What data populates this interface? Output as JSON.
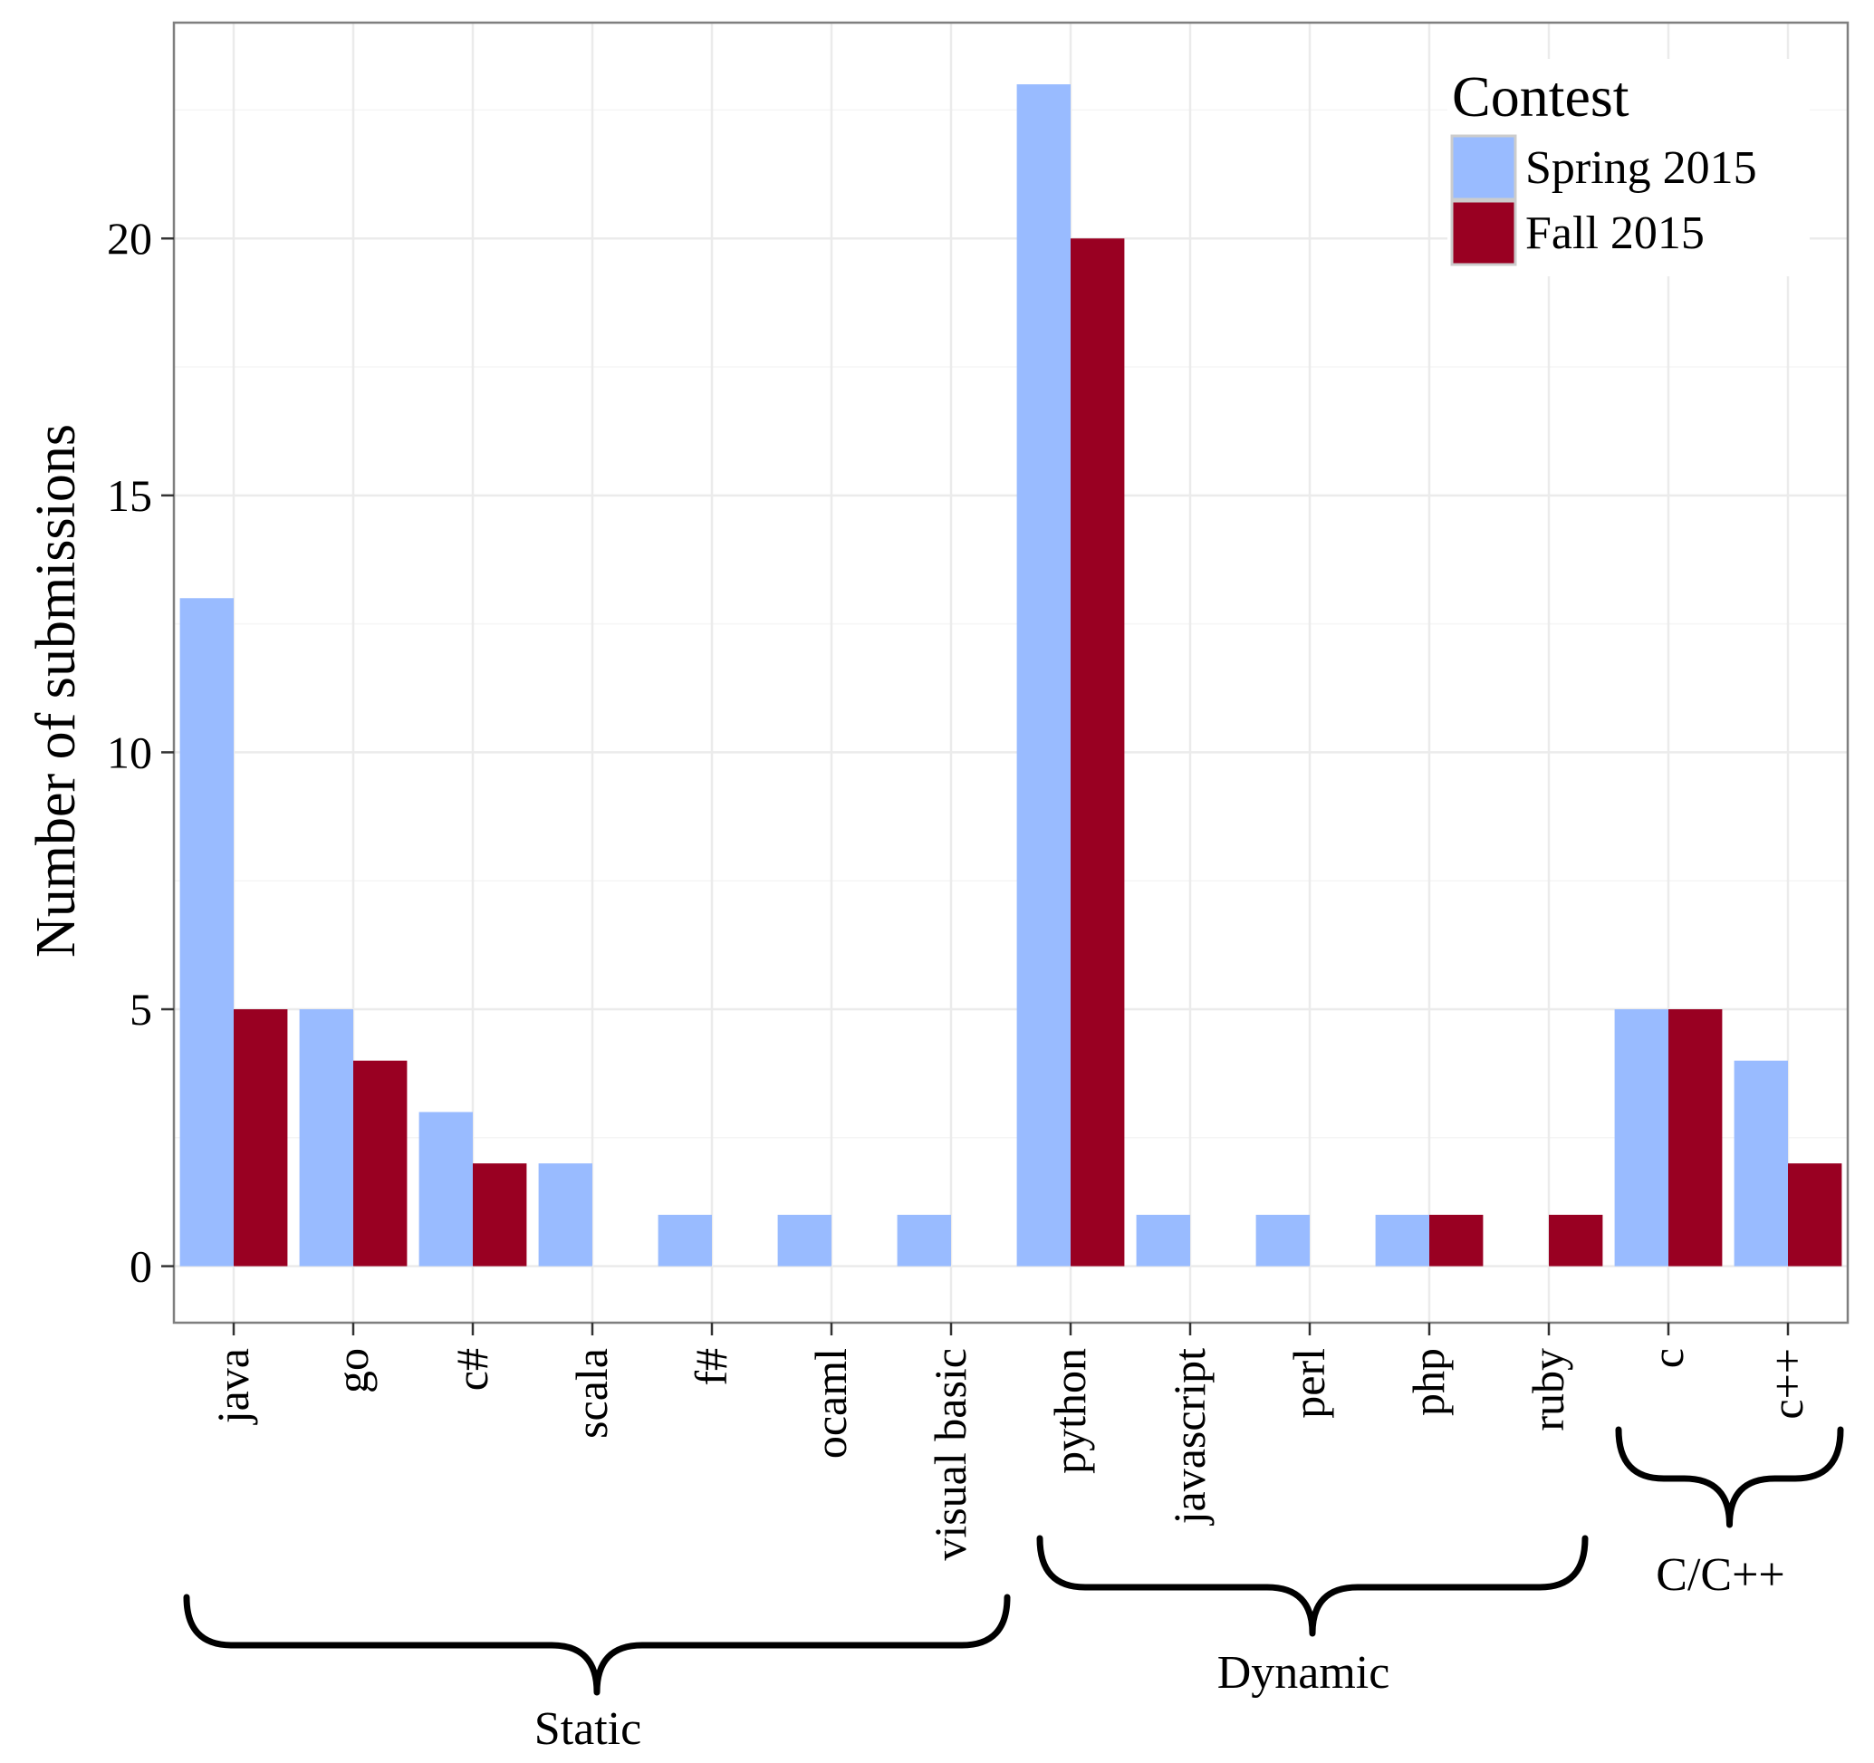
{
  "chart_data": {
    "type": "bar",
    "title": "",
    "xlabel": "",
    "ylabel": "Number of submissions",
    "ylim": [
      -1.1,
      24.2
    ],
    "yticks": [
      0,
      5,
      10,
      15,
      20
    ],
    "grid": true,
    "categories": [
      "java",
      "go",
      "c#",
      "scala",
      "f#",
      "ocaml",
      "visual basic",
      "python",
      "javascript",
      "perl",
      "php",
      "ruby",
      "c",
      "c++"
    ],
    "legend": {
      "title": "Contest",
      "placement": "top-right"
    },
    "series": [
      {
        "name": "Spring 2015",
        "color": "#99bbff",
        "values": [
          13,
          5,
          3,
          2,
          1,
          1,
          1,
          23,
          1,
          1,
          1,
          0,
          5,
          4
        ]
      },
      {
        "name": "Fall 2015",
        "color": "#990022",
        "values": [
          5,
          4,
          2,
          0,
          0,
          0,
          0,
          20,
          0,
          0,
          1,
          1,
          5,
          2
        ]
      }
    ],
    "groups": [
      {
        "label": "Static",
        "from": "java",
        "to": "visual basic"
      },
      {
        "label": "Dynamic",
        "from": "python",
        "to": "ruby"
      },
      {
        "label": "C/C++",
        "from": "c",
        "to": "c++"
      }
    ]
  }
}
